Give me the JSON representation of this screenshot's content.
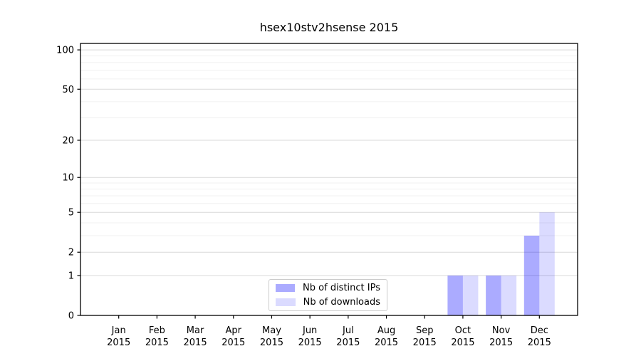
{
  "figure": {
    "background": "#ffffff",
    "text_color": "#000000"
  },
  "chart_data": {
    "type": "bar",
    "title": "hsex10stv2hsense 2015",
    "xlabel": "",
    "ylabel": "",
    "categories": [
      "Jan",
      "Feb",
      "Mar",
      "Apr",
      "May",
      "Jun",
      "Jul",
      "Aug",
      "Sep",
      "Oct",
      "Nov",
      "Dec"
    ],
    "category_year": "2015",
    "series": [
      {
        "name": "Nb of distinct IPs",
        "color": "#0000ff",
        "alpha": 0.33,
        "values": [
          0,
          0,
          0,
          0,
          0,
          0,
          0,
          0,
          0,
          1,
          1,
          3
        ]
      },
      {
        "name": "Nb of downloads",
        "color": "#0000ff",
        "alpha": 0.14,
        "values": [
          0,
          0,
          0,
          0,
          0,
          0,
          0,
          0,
          0,
          1,
          1,
          5
        ]
      }
    ],
    "y_scale": "log1p",
    "ylim": [
      0,
      112
    ],
    "y_ticks": [
      0,
      1,
      2,
      5,
      10,
      20,
      50,
      100
    ],
    "y_minor_ticks": [
      3,
      4,
      6,
      7,
      8,
      9,
      30,
      40,
      60,
      70,
      80,
      90
    ],
    "grid": {
      "major_color": "#d9d9d9",
      "minor_color": "#f0f0f0"
    },
    "axis_color": "#000000",
    "legend": {
      "position": "lower-center",
      "border_color": "#cccccc"
    }
  }
}
